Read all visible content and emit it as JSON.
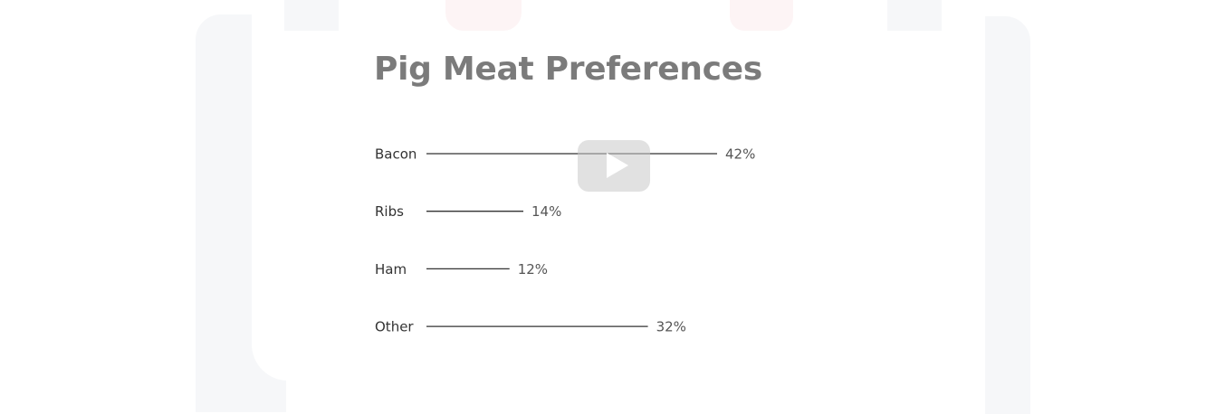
{
  "chart_data": {
    "type": "bar",
    "orientation": "horizontal",
    "title": "Pig Meat Preferences",
    "categories": [
      "Bacon",
      "Ribs",
      "Ham",
      "Other"
    ],
    "values": [
      42,
      14,
      12,
      32
    ],
    "value_labels": [
      "42%",
      "14%",
      "12%",
      "32%"
    ],
    "unit": "%",
    "xlabel": "",
    "ylabel": "",
    "xlim": [
      0,
      42
    ],
    "grid": false,
    "bar_color": "#333333"
  },
  "video": {
    "play_icon": "play-icon"
  }
}
